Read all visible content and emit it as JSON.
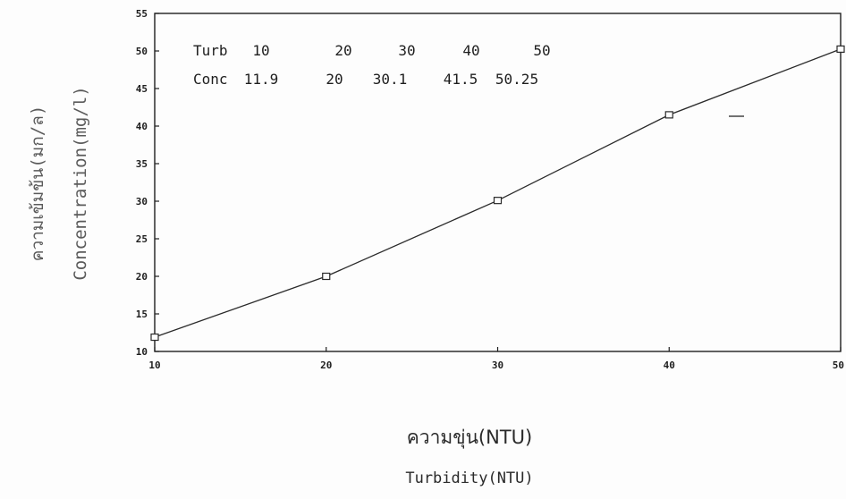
{
  "chart_data": {
    "type": "line",
    "x": [
      10,
      20,
      30,
      40,
      50
    ],
    "y": [
      11.9,
      20,
      30.1,
      41.5,
      50.25
    ],
    "xlim": [
      10,
      50
    ],
    "ylim": [
      10,
      55
    ],
    "x_ticks": [
      "10",
      "20",
      "30",
      "40",
      "50"
    ],
    "y_ticks": [
      "10",
      "15",
      "20",
      "25",
      "30",
      "35",
      "40",
      "45",
      "50",
      "55"
    ],
    "xlabel_th": "ความขุ่น(NTU)",
    "xlabel_en": "Turbidity(NTU)",
    "ylabel_th": "ความเข้มข้น(มก/ล)",
    "ylabel_en": "Concentration(mg/l)",
    "marker": "square",
    "grid": false,
    "table": {
      "row1_label": "Turb",
      "row1_values": [
        "10",
        "20",
        "30",
        "40",
        "50"
      ],
      "row2_label": "Conc",
      "row2_values": [
        "11.9",
        "20",
        "30.1",
        "41.5",
        "50.25"
      ]
    },
    "colors": {
      "line": "#2a2a2a",
      "axis": "#1e1e1e"
    }
  }
}
